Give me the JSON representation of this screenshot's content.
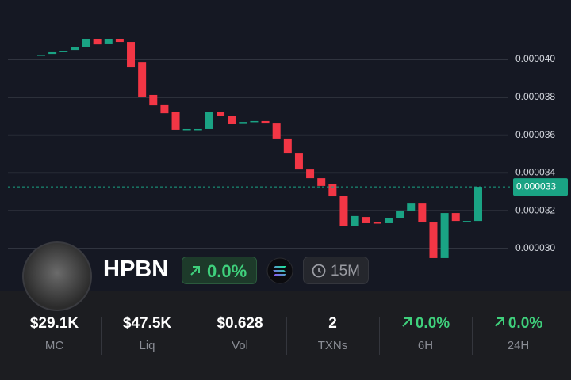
{
  "chart_data": {
    "type": "candlestick",
    "open": [
      4.025e-05,
      4.029e-05,
      4.038e-05,
      4.05e-05,
      4.067e-05,
      4.109e-05,
      4.084e-05,
      4.109e-05,
      4.092e-05,
      3.987e-05,
      3.812e-05,
      3.762e-05,
      3.72e-05,
      3.632e-05,
      3.632e-05,
      3.632e-05,
      3.72e-05,
      3.703e-05,
      3.669e-05,
      3.669e-05,
      3.674e-05,
      3.665e-05,
      3.582e-05,
      3.506e-05,
      3.418e-05,
      3.372e-05,
      3.339e-05,
      3.28e-05,
      3.121e-05,
      3.167e-05,
      3.138e-05,
      3.134e-05,
      3.163e-05,
      3.201e-05,
      3.238e-05,
      3.138e-05,
      2.95e-05,
      3.188e-05,
      3.146e-05,
      3.146e-05
    ],
    "close": [
      4.025e-05,
      4.038e-05,
      4.046e-05,
      4.067e-05,
      4.109e-05,
      4.079e-05,
      4.109e-05,
      4.092e-05,
      3.958e-05,
      3.803e-05,
      3.757e-05,
      3.715e-05,
      3.628e-05,
      3.632e-05,
      3.632e-05,
      3.72e-05,
      3.703e-05,
      3.657e-05,
      3.669e-05,
      3.674e-05,
      3.665e-05,
      3.582e-05,
      3.506e-05,
      3.418e-05,
      3.372e-05,
      3.331e-05,
      3.276e-05,
      3.121e-05,
      3.172e-05,
      3.134e-05,
      3.134e-05,
      3.163e-05,
      3.201e-05,
      3.238e-05,
      3.138e-05,
      2.95e-05,
      3.188e-05,
      3.146e-05,
      3.146e-05,
      3.326e-05
    ],
    "up_color": "#1aa384",
    "down_color": "#f23645",
    "ylim": [
      2.774e-05,
      4.314e-05
    ],
    "yticks": [
      {
        "value": 3e-05,
        "label": "0.000030"
      },
      {
        "value": 3.2e-05,
        "label": "0.000032"
      },
      {
        "value": 3.4e-05,
        "label": "0.000034"
      },
      {
        "value": 3.6e-05,
        "label": "0.000036"
      },
      {
        "value": 3.8e-05,
        "label": "0.000038"
      },
      {
        "value": 4e-05,
        "label": "0.000040"
      }
    ],
    "grid": true,
    "last_price": {
      "value": 3.326e-05,
      "label": "0.000033"
    }
  },
  "token": {
    "symbol": "HPBN",
    "change": "0.0%",
    "interval": "15M"
  },
  "stats": [
    {
      "value": "$29.1K",
      "label": "MC"
    },
    {
      "value": "$47.5K",
      "label": "Liq"
    },
    {
      "value": "$0.628",
      "label": "Vol"
    },
    {
      "value": "2",
      "label": "TXNs"
    },
    {
      "value": "0.0%",
      "label": "6H"
    },
    {
      "value": "0.0%",
      "label": "24H"
    }
  ]
}
